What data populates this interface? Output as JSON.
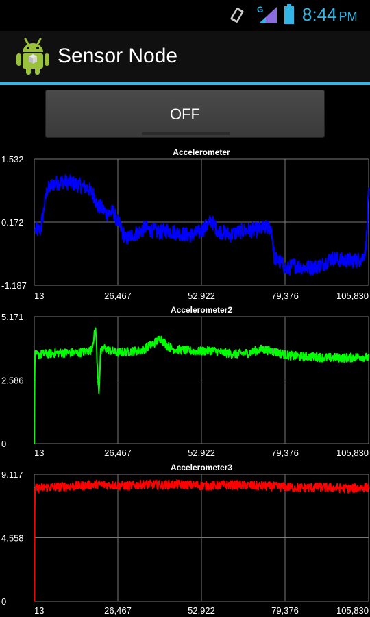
{
  "status_bar": {
    "time": "8:44",
    "ampm": "PM",
    "network_label": "G",
    "icons": [
      "screen-rotation-icon",
      "signal-icon",
      "battery-icon"
    ],
    "accent": "#33b5e5"
  },
  "app": {
    "title": "Sensor Node",
    "icon": "android-icon"
  },
  "toggle": {
    "label": "OFF",
    "state": "off"
  },
  "colors": {
    "accent": "#33b5e5",
    "background": "#000000",
    "grid": "#777777"
  },
  "chart_data": [
    {
      "type": "line",
      "title": "Accelerometer",
      "color": "#0000ff",
      "ylim": [
        -1.187,
        1.532
      ],
      "y_ticks": [
        "1.532",
        "0.172",
        "-1.187"
      ],
      "x_ticks": [
        "13",
        "26,467",
        "52,922",
        "79,376",
        "105,830"
      ],
      "xlim": [
        13,
        105830
      ],
      "grid": true,
      "series": [
        {
          "x": [
            13,
            2000,
            4000,
            6000,
            9000,
            12000,
            15000,
            17000,
            19000,
            20000,
            21000,
            23000,
            25000,
            27000,
            29000,
            31000,
            33000,
            35000,
            37000,
            40000,
            42000,
            45000,
            48000,
            50000,
            52000,
            54000,
            56000,
            58000,
            60000,
            62000,
            64000,
            67000,
            70000,
            73000,
            75000,
            76000,
            78000,
            80000,
            82000,
            85000,
            88000,
            91000,
            94000,
            97000,
            100000,
            102000,
            104000,
            105000,
            105830
          ],
          "y": [
            0.0,
            0.0,
            0.85,
            1.0,
            1.05,
            1.02,
            0.95,
            0.9,
            0.75,
            0.5,
            0.5,
            0.35,
            0.4,
            0.1,
            -0.2,
            -0.1,
            -0.05,
            0.05,
            0.0,
            -0.05,
            0.0,
            -0.05,
            -0.1,
            -0.1,
            -0.05,
            0.05,
            0.2,
            0.0,
            -0.05,
            -0.1,
            -0.05,
            0.0,
            0.0,
            0.05,
            0.05,
            -0.6,
            -0.7,
            -0.85,
            -0.75,
            -0.8,
            -0.8,
            -0.75,
            -0.6,
            -0.65,
            -0.65,
            -0.65,
            -0.6,
            -0.35,
            1.0
          ]
        }
      ]
    },
    {
      "type": "line",
      "title": "Accelerometer2",
      "color": "#00ff00",
      "ylim": [
        0,
        5.171
      ],
      "y_ticks": [
        "5.171",
        "2.586",
        "0"
      ],
      "x_ticks": [
        "13",
        "26,467",
        "52,922",
        "79,376",
        "105,830"
      ],
      "xlim": [
        13,
        105830
      ],
      "grid": true,
      "series": [
        {
          "x": [
            13,
            200,
            3000,
            8000,
            14000,
            18000,
            19500,
            20000,
            20500,
            21000,
            22000,
            26000,
            30000,
            34000,
            38000,
            40000,
            42000,
            44000,
            48000,
            52000,
            56000,
            60000,
            64000,
            68000,
            72000,
            76000,
            80000,
            84000,
            88000,
            92000,
            96000,
            100000,
            103000,
            105830
          ],
          "y": [
            0,
            3.6,
            3.65,
            3.7,
            3.7,
            3.8,
            4.7,
            3.0,
            2.1,
            3.7,
            3.9,
            3.7,
            3.75,
            3.8,
            4.1,
            4.3,
            4.0,
            3.85,
            3.8,
            3.75,
            3.8,
            3.7,
            3.65,
            3.7,
            3.85,
            3.75,
            3.6,
            3.55,
            3.55,
            3.5,
            3.5,
            3.5,
            3.55,
            3.5
          ]
        }
      ]
    },
    {
      "type": "line",
      "title": "Accelerometer3",
      "color": "#ff0000",
      "ylim": [
        0,
        9.117
      ],
      "y_ticks": [
        "9.117",
        "4.558",
        "0"
      ],
      "x_ticks": [
        "13",
        "26,467",
        "52,922",
        "79,376",
        "105,830"
      ],
      "xlim": [
        13,
        105830
      ],
      "grid": true,
      "series": [
        {
          "x": [
            13,
            200,
            5000,
            10000,
            15000,
            20000,
            25000,
            30000,
            35000,
            40000,
            45000,
            50000,
            55000,
            60000,
            65000,
            70000,
            75000,
            80000,
            85000,
            90000,
            95000,
            100000,
            105830
          ],
          "y": [
            0,
            8.1,
            8.2,
            8.25,
            8.3,
            8.4,
            8.35,
            8.3,
            8.4,
            8.35,
            8.4,
            8.35,
            8.3,
            8.35,
            8.35,
            8.3,
            8.25,
            8.2,
            8.15,
            8.2,
            8.15,
            8.1,
            8.2
          ]
        }
      ]
    }
  ]
}
